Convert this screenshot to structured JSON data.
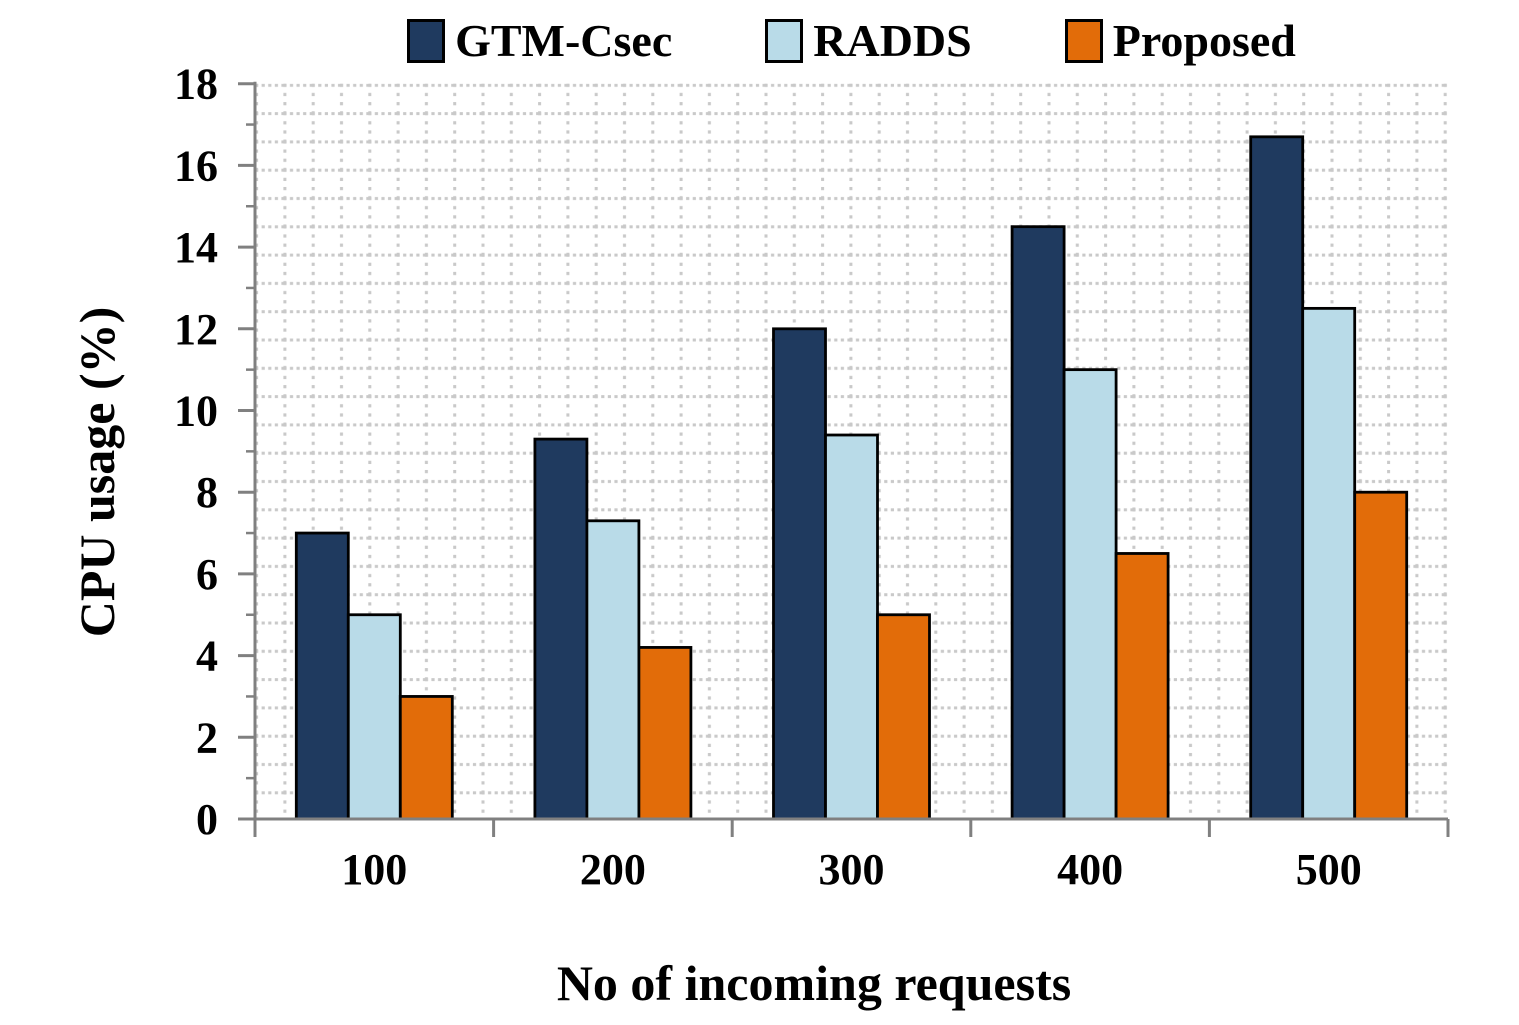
{
  "chart_data": {
    "type": "bar",
    "title": "",
    "xlabel": "No of incoming requests",
    "ylabel": "CPU usage (%)",
    "categories": [
      "100",
      "200",
      "300",
      "400",
      "500"
    ],
    "series": [
      {
        "name": "GTM-Csec",
        "color": "#1F3A5F",
        "values": [
          7,
          9.3,
          12,
          14.5,
          16.7
        ]
      },
      {
        "name": "RADDS",
        "color": "#B9DBE8",
        "values": [
          5,
          7.3,
          9.4,
          11,
          12.5
        ]
      },
      {
        "name": "Proposed",
        "color": "#E26C09",
        "values": [
          3,
          4.2,
          5,
          6.5,
          8
        ]
      }
    ],
    "ylim": [
      0,
      18
    ],
    "yticks": [
      0,
      2,
      4,
      6,
      8,
      10,
      12,
      14,
      16,
      18
    ],
    "minor_unit": 1,
    "legend_position": "top",
    "grid": "dotted-mesh"
  },
  "style": {
    "axis_color": "#808080",
    "grid_color": "#C9C9C9",
    "bar_outline": "#000000",
    "text_color": "#000000"
  }
}
